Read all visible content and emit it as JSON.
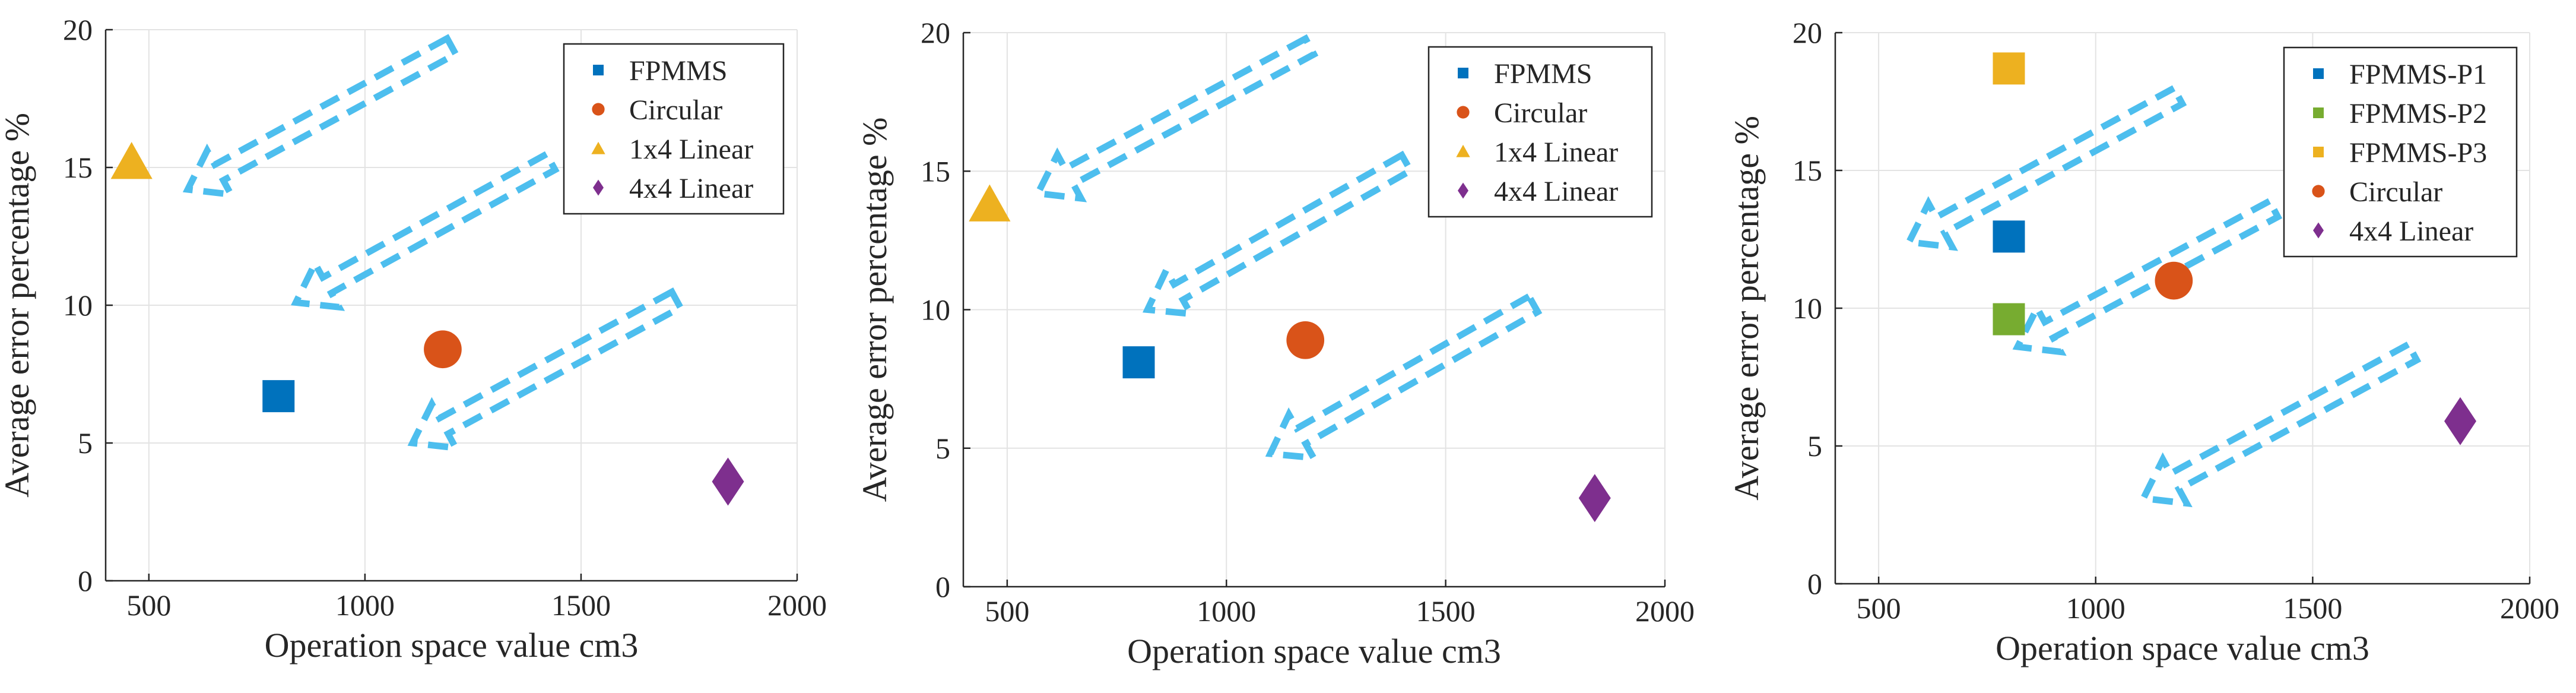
{
  "chart_data": [
    {
      "type": "scatter",
      "title": "",
      "xlabel": "Operation space value cm3",
      "ylabel": "Average error percentage %",
      "xlim": [
        400,
        2000
      ],
      "ylim": [
        0,
        20
      ],
      "xticks": [
        "500",
        "1000",
        "1500",
        "2000"
      ],
      "yticks": [
        "0",
        "5",
        "10",
        "15",
        "20"
      ],
      "grid": true,
      "legend_position": "top-right",
      "series": [
        {
          "name": "FPMMS",
          "marker": "square",
          "color": "#0072BD",
          "x": 800,
          "y": 6.7
        },
        {
          "name": "Circular",
          "marker": "circle",
          "color": "#D95319",
          "x": 1180,
          "y": 8.4
        },
        {
          "name": "1x4 Linear",
          "marker": "triangle",
          "color": "#EDB120",
          "x": 460,
          "y": 15.2
        },
        {
          "name": "4x4 Linear",
          "marker": "diamond",
          "color": "#7E2F8E",
          "x": 1840,
          "y": 3.6
        }
      ],
      "annotations": {
        "type": "dashed-arrows",
        "color": "#4DBEEE",
        "arrows": [
          {
            "from": [
              1200,
              19.4
            ],
            "to": [
              590,
              14.2
            ]
          },
          {
            "from": [
              1430,
              15.2
            ],
            "to": [
              840,
              10.1
            ]
          },
          {
            "from": [
              1720,
              10.2
            ],
            "to": [
              1110,
              5.0
            ]
          }
        ]
      }
    },
    {
      "type": "scatter",
      "title": "",
      "xlabel": "Operation space value cm3",
      "ylabel": "Average error percentage %",
      "xlim": [
        400,
        2000
      ],
      "ylim": [
        0,
        20
      ],
      "xticks": [
        "500",
        "1000",
        "1500",
        "2000"
      ],
      "yticks": [
        "0",
        "5",
        "10",
        "15",
        "20"
      ],
      "grid": true,
      "legend_position": "top-right",
      "series": [
        {
          "name": "FPMMS",
          "marker": "square",
          "color": "#0072BD",
          "x": 800,
          "y": 8.1
        },
        {
          "name": "Circular",
          "marker": "circle",
          "color": "#D95319",
          "x": 1180,
          "y": 8.9
        },
        {
          "name": "1x4 Linear",
          "marker": "triangle",
          "color": "#EDB120",
          "x": 460,
          "y": 13.8
        },
        {
          "name": "4x4 Linear",
          "marker": "diamond",
          "color": "#7E2F8E",
          "x": 1840,
          "y": 3.2
        }
      ],
      "annotations": {
        "type": "dashed-arrows",
        "color": "#4DBEEE",
        "arrows": [
          {
            "from": [
              1190,
              19.5
            ],
            "to": [
              570,
              14.2
            ]
          },
          {
            "from": [
              1410,
              15.3
            ],
            "to": [
              820,
              10.0
            ]
          },
          {
            "from": [
              1700,
              10.2
            ],
            "to": [
              1100,
              4.8
            ]
          }
        ]
      }
    },
    {
      "type": "scatter",
      "title": "",
      "xlabel": "Operation space value cm3",
      "ylabel": "Average error percentage %",
      "xlim": [
        400,
        2000
      ],
      "ylim": [
        0,
        20
      ],
      "xticks": [
        "500",
        "1000",
        "1500",
        "2000"
      ],
      "yticks": [
        "0",
        "5",
        "10",
        "15",
        "20"
      ],
      "grid": true,
      "legend_position": "top-right",
      "series": [
        {
          "name": "FPMMS-P1",
          "marker": "square",
          "color": "#0072BD",
          "x": 800,
          "y": 12.6
        },
        {
          "name": "FPMMS-P2",
          "marker": "square",
          "color": "#77AC30",
          "x": 800,
          "y": 9.6
        },
        {
          "name": "FPMMS-P3",
          "marker": "square",
          "color": "#EDB120",
          "x": 800,
          "y": 18.7
        },
        {
          "name": "Circular",
          "marker": "circle",
          "color": "#D95319",
          "x": 1180,
          "y": 11.0
        },
        {
          "name": "4x4 Linear",
          "marker": "diamond",
          "color": "#7E2F8E",
          "x": 1840,
          "y": 5.9
        }
      ],
      "annotations": {
        "type": "dashed-arrows",
        "color": "#4DBEEE",
        "arrows": [
          {
            "from": [
              1190,
              17.7
            ],
            "to": [
              570,
              12.4
            ]
          },
          {
            "from": [
              1410,
              13.6
            ],
            "to": [
              820,
              8.6
            ]
          },
          {
            "from": [
              1730,
              8.4
            ],
            "to": [
              1110,
              3.1
            ]
          }
        ]
      }
    }
  ]
}
